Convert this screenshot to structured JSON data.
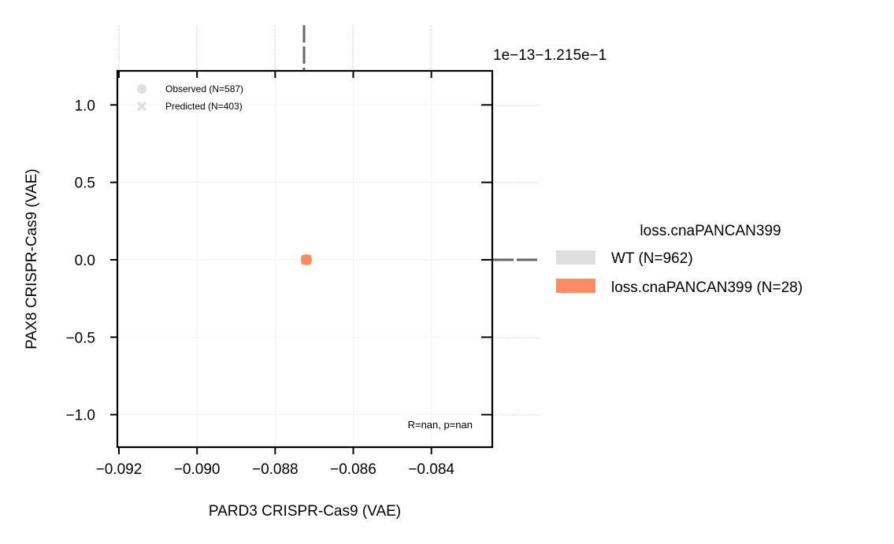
{
  "chart_data": {
    "type": "scatter",
    "xlabel": "PARD3 CRISPR-Cas9 (VAE)",
    "ylabel": "PAX8 CRISPR-Cas9 (VAE)",
    "x_ticks": [
      "−0.092",
      "−0.090",
      "−0.088",
      "−0.086",
      "−0.084"
    ],
    "x_tick_values": [
      -0.092,
      -0.09,
      -0.088,
      -0.086,
      -0.084
    ],
    "y_ticks": [
      "1.0",
      "0.5",
      "0.0",
      "−0.5",
      "−1.0"
    ],
    "y_tick_values": [
      1.0,
      0.5,
      0.0,
      -0.5,
      -1.0
    ],
    "xlim": [
      -0.09204,
      -0.08244
    ],
    "ylim": [
      -1.21,
      1.22
    ],
    "offset_text": "1e−13−1.215e−1",
    "grid": true,
    "series": [
      {
        "name": "Observed (N=587)",
        "marker": "circle",
        "color": "#e0e0e0"
      },
      {
        "name": "Predicted (N=403)",
        "marker": "x",
        "color": "#e0e0e0"
      }
    ],
    "points": [
      {
        "x": -0.0872,
        "y": 0.0,
        "marker": "circle",
        "color": "#fc8d62"
      },
      {
        "x": -0.0872,
        "y": 0.0,
        "marker": "x",
        "color": "#fc8d62"
      }
    ],
    "annotation": "R=nan, p=nan",
    "hue_legend": {
      "title": "loss.cnaPANCAN399",
      "entries": [
        {
          "label": "WT (N=962)",
          "color": "#dedede"
        },
        {
          "label": "loss.cnaPANCAN399 (N=28)",
          "color": "#fc8d62"
        }
      ],
      "placement": "right outside"
    },
    "marker_legend_placement": "top-left"
  }
}
